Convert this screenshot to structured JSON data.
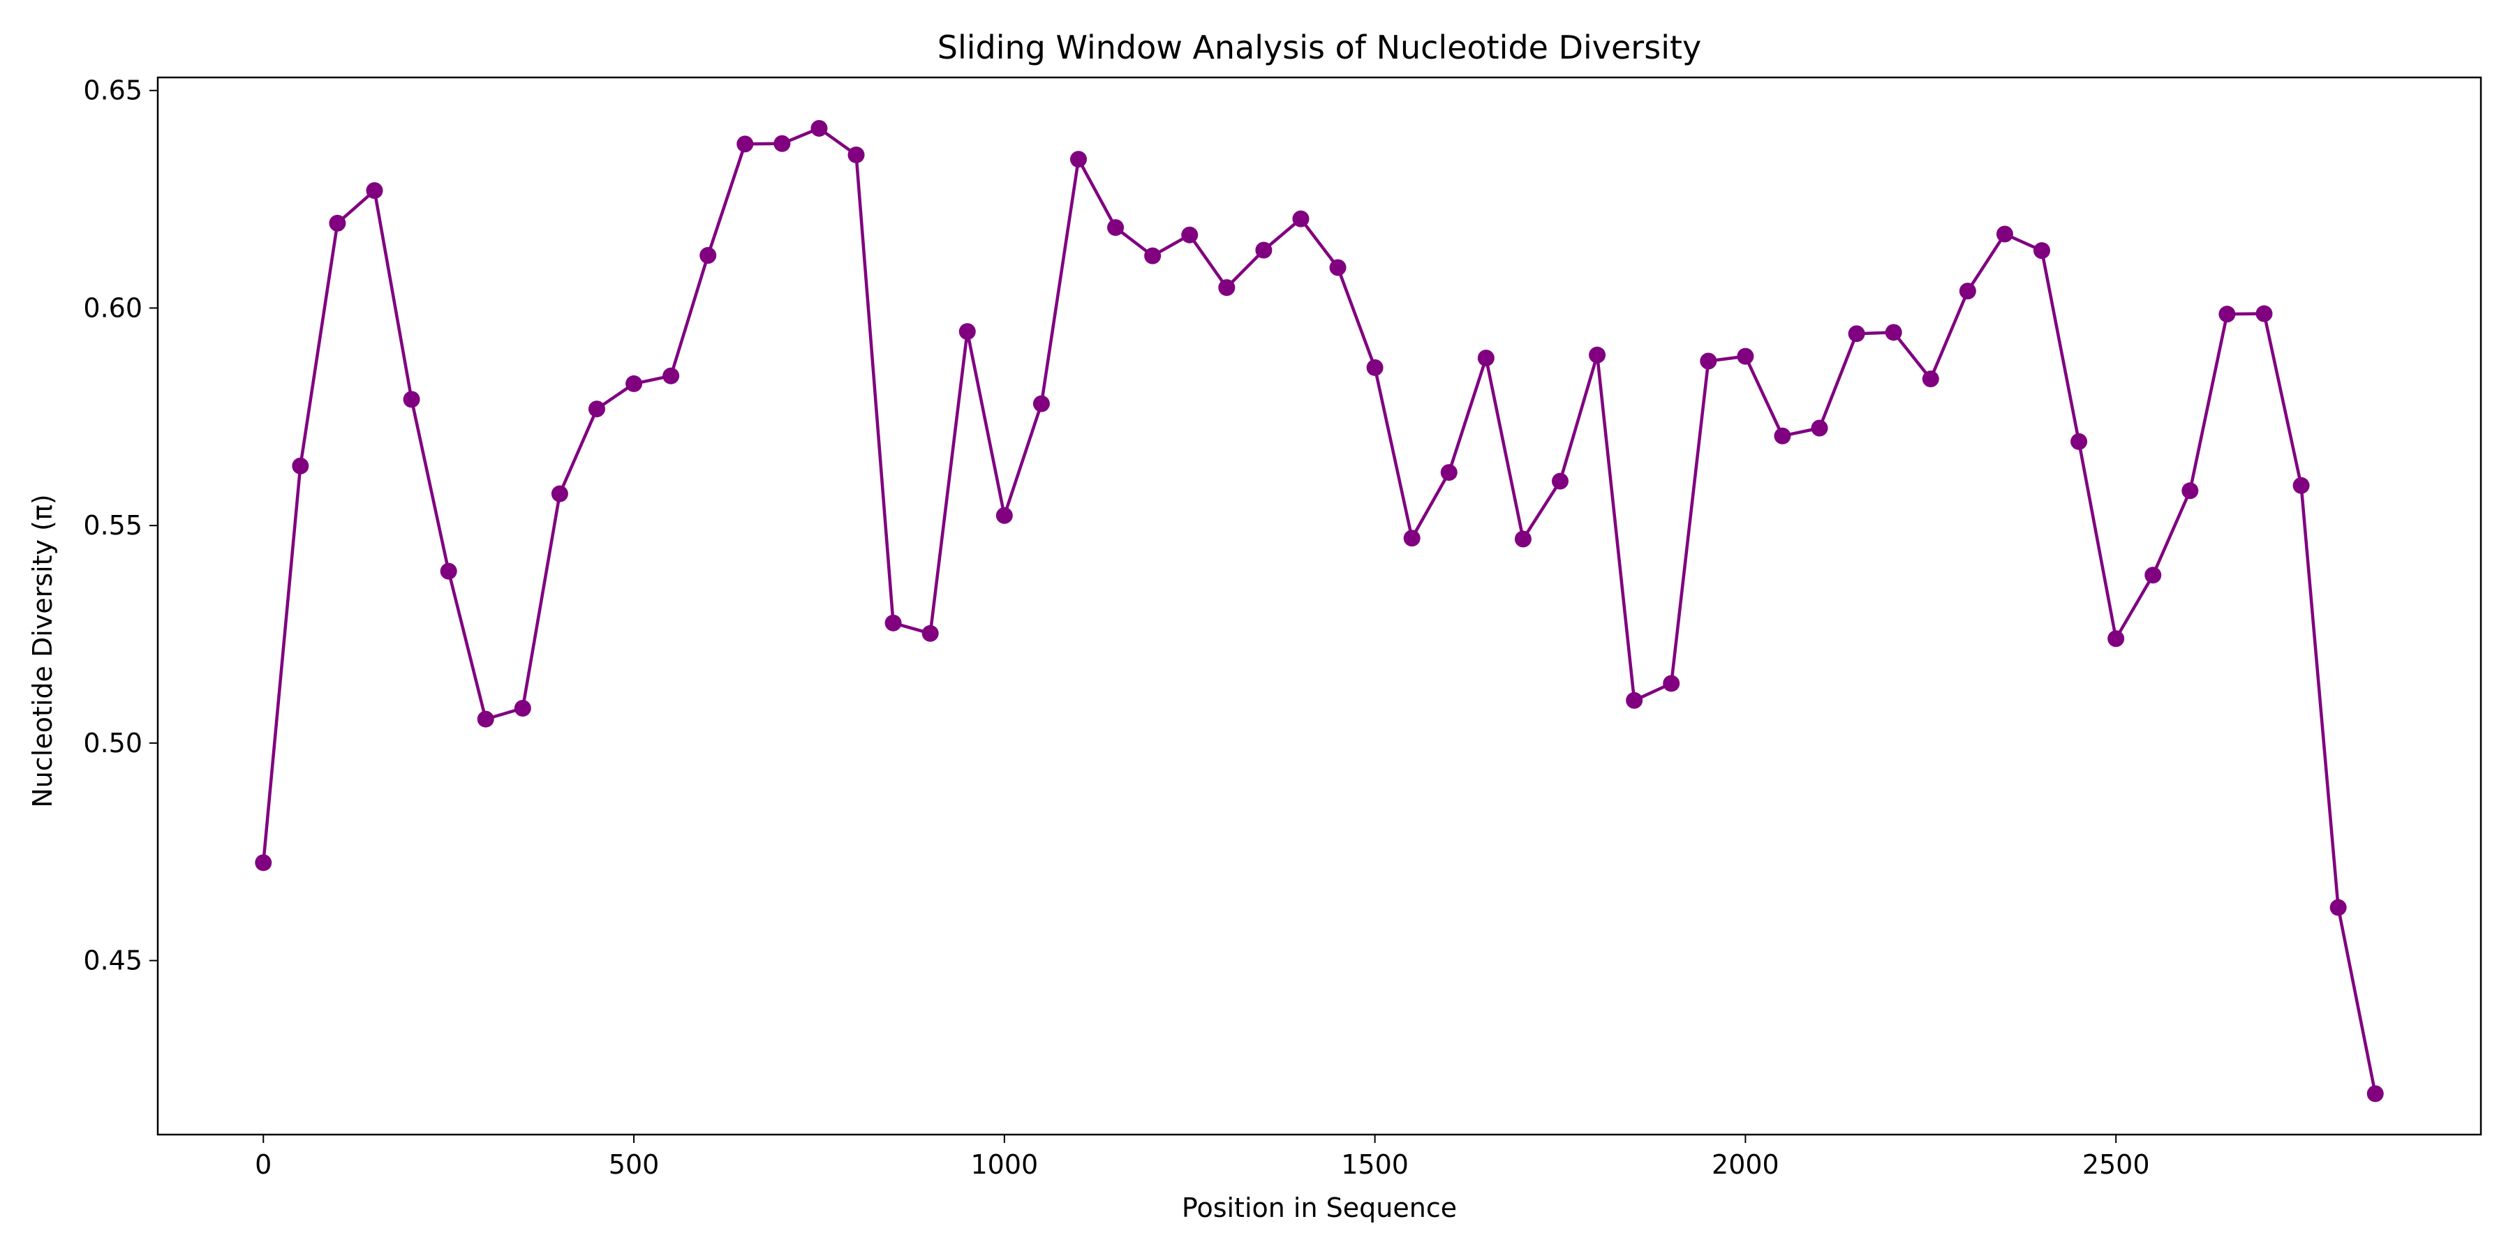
{
  "chart_data": {
    "type": "line",
    "title": "Sliding Window Analysis of Nucleotide Diversity",
    "xlabel": "Position in Sequence",
    "ylabel": "Nucleotide Diversity (π)",
    "xlim": [
      -142.5,
      2992.5
    ],
    "ylim": [
      0.41,
      0.653
    ],
    "xticks": [
      0,
      500,
      1000,
      1500,
      2000,
      2500
    ],
    "yticks": [
      0.45,
      0.5,
      0.55,
      0.6,
      0.65
    ],
    "ytick_labels": [
      "0.45",
      "0.50",
      "0.55",
      "0.60",
      "0.65"
    ],
    "grid": false,
    "line_color": "#800080",
    "marker": "circle",
    "series": [
      {
        "x": [
          0,
          50,
          100,
          150,
          200,
          250,
          300,
          350,
          400,
          450,
          500,
          550,
          600,
          650,
          700,
          750,
          800,
          850,
          900,
          950,
          1000,
          1050,
          1100,
          1150,
          1200,
          1250,
          1300,
          1350,
          1400,
          1450,
          1500,
          1550,
          1600,
          1650,
          1700,
          1750,
          1800,
          1850,
          1900,
          1950,
          2000,
          2050,
          2100,
          2150,
          2200,
          2250,
          2300,
          2350,
          2400,
          2450,
          2500,
          2550,
          2600,
          2650,
          2700,
          2750,
          2800,
          2850
        ],
        "values": [
          0.4725,
          0.5637,
          0.6195,
          0.627,
          0.579,
          0.5395,
          0.5055,
          0.508,
          0.5573,
          0.5768,
          0.5826,
          0.5844,
          0.6121,
          0.6377,
          0.6378,
          0.6413,
          0.6352,
          0.5276,
          0.5252,
          0.5946,
          0.5523,
          0.578,
          0.6342,
          0.6185,
          0.612,
          0.6168,
          0.6047,
          0.6133,
          0.6205,
          0.6093,
          0.5863,
          0.5471,
          0.5622,
          0.5885,
          0.5469,
          0.5602,
          0.5892,
          0.5098,
          0.5137,
          0.5878,
          0.5889,
          0.5706,
          0.5724,
          0.5941,
          0.5944,
          0.5837,
          0.6039,
          0.617,
          0.6132,
          0.5693,
          0.524,
          0.5386,
          0.558,
          0.5986,
          0.5987,
          0.5592,
          0.4622,
          0.4194
        ]
      }
    ]
  }
}
